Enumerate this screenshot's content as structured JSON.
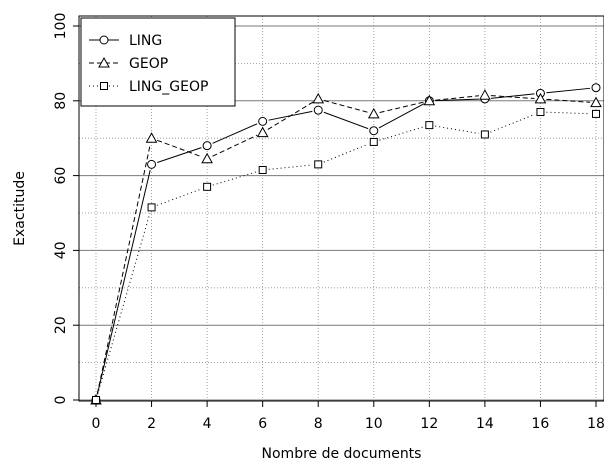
{
  "chart_data": {
    "type": "line",
    "xlabel": "Nombre de documents",
    "ylabel": "Exactitude",
    "xlim": [
      0,
      18
    ],
    "ylim": [
      0,
      100
    ],
    "xticks": [
      0,
      2,
      4,
      6,
      8,
      10,
      12,
      14,
      16,
      18
    ],
    "yticks": [
      0,
      20,
      40,
      60,
      80,
      100
    ],
    "grid": true,
    "legend_position": "top-left",
    "x": [
      0,
      2,
      4,
      6,
      8,
      10,
      12,
      14,
      16,
      18
    ],
    "series": [
      {
        "name": "LING",
        "marker": "circle",
        "line_style": "solid",
        "values": [
          0,
          63,
          68,
          74.5,
          77.5,
          72,
          80,
          80.5,
          82,
          83.5
        ]
      },
      {
        "name": "GEOP",
        "marker": "triangle",
        "line_style": "dashed",
        "values": [
          0,
          70,
          64.5,
          71.5,
          80.5,
          76.5,
          80,
          81.5,
          80.5,
          79.5
        ]
      },
      {
        "name": "LING_GEOP",
        "marker": "square",
        "line_style": "dotted",
        "values": [
          0,
          51.5,
          57,
          61.5,
          63,
          69,
          73.5,
          71,
          77,
          76.5
        ]
      }
    ]
  }
}
